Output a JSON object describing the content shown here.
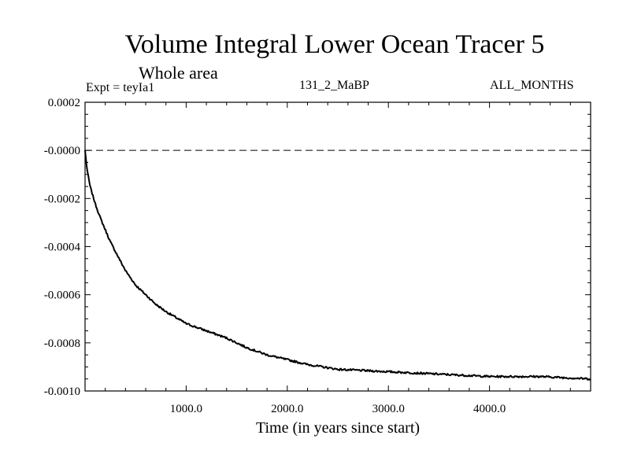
{
  "header": {
    "title": "Volume Integral Lower Ocean Tracer 5",
    "subtitle": "Whole area",
    "expt": "Expt = teyIa1",
    "period": "131_2_MaBP",
    "months": "ALL_MONTHS"
  },
  "chart_data": {
    "type": "line",
    "title": "Volume Integral Lower Ocean Tracer 5",
    "subtitle": "Whole area",
    "xlabel": "Time (in years since start)",
    "ylabel": "",
    "xlim": [
      0,
      5000
    ],
    "ylim": [
      -0.001,
      0.0002
    ],
    "x_ticks": [
      1000,
      2000,
      3000,
      4000
    ],
    "x_tick_labels": [
      "1000.0",
      "2000.0",
      "3000.0",
      "4000.0"
    ],
    "y_ticks": [
      0.0002,
      0.0,
      -0.0002,
      -0.0004,
      -0.0006,
      -0.0008,
      -0.001
    ],
    "y_tick_labels": [
      "0.0002",
      "-0.0000",
      "-0.0002",
      "-0.0004",
      "-0.0006",
      "-0.0008",
      "-0.0010"
    ],
    "reference_line": {
      "y": 0.0,
      "style": "dashed"
    },
    "grid": false,
    "series": [
      {
        "name": "Lower Ocean Tracer 5",
        "x": [
          0,
          20,
          50,
          100,
          150,
          200,
          250,
          300,
          400,
          500,
          600,
          700,
          800,
          1000,
          1200,
          1400,
          1600,
          1800,
          2000,
          2200,
          2500,
          3000,
          3500,
          4000,
          4500,
          5000
        ],
        "y": [
          0.0,
          -8e-05,
          -0.00015,
          -0.00022,
          -0.00028,
          -0.00033,
          -0.00038,
          -0.00042,
          -0.0005,
          -0.00056,
          -0.0006,
          -0.00064,
          -0.00067,
          -0.00072,
          -0.00075,
          -0.00078,
          -0.00082,
          -0.00085,
          -0.00087,
          -0.00089,
          -0.00091,
          -0.00092,
          -0.00093,
          -0.00094,
          -0.00094,
          -0.00095
        ]
      }
    ]
  }
}
